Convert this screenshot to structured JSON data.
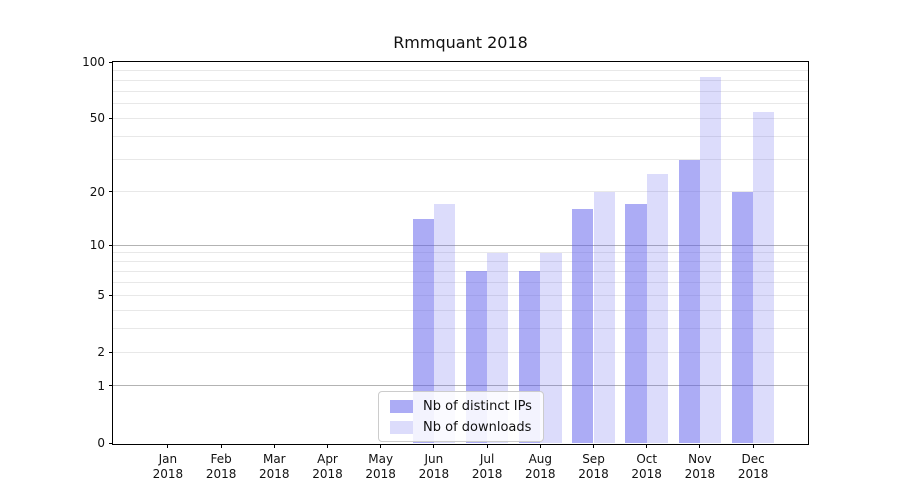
{
  "chart_data": {
    "type": "bar",
    "title": "Rmmquant 2018",
    "categories": [
      "Jan 2018",
      "Feb 2018",
      "Mar 2018",
      "Apr 2018",
      "May 2018",
      "Jun 2018",
      "Jul 2018",
      "Aug 2018",
      "Sep 2018",
      "Oct 2018",
      "Nov 2018",
      "Dec 2018"
    ],
    "series": [
      {
        "name": "Nb of distinct IPs",
        "values": [
          0,
          0,
          0,
          0,
          0,
          14,
          7,
          7,
          16,
          17,
          30,
          20
        ],
        "color": "#5a5aeb",
        "alpha": 0.5
      },
      {
        "name": "Nb of downloads",
        "values": [
          0,
          0,
          0,
          0,
          0,
          17,
          9,
          9,
          20,
          25,
          83,
          54
        ],
        "color": "#5a5aeb",
        "alpha": 0.21
      }
    ],
    "xlabel": "",
    "ylabel": "",
    "ylim": [
      0,
      100
    ],
    "yscale": "log1p",
    "yticks": [
      0,
      1,
      2,
      5,
      10,
      20,
      50,
      100
    ],
    "major_gridlines": [
      1,
      10
    ],
    "minor_gridlines": [
      2,
      3,
      4,
      5,
      6,
      7,
      8,
      9,
      20,
      30,
      40,
      50,
      60,
      70,
      80,
      90
    ],
    "grid": "on",
    "legend_position": "lower center"
  },
  "style": {
    "background": "#ffffff",
    "spine_color": "#000000",
    "major_grid_color": "#b3b3b3",
    "minor_grid_color": "#e8e8e8",
    "text_color": "#111111",
    "legend_border_color": "#cccccc"
  }
}
